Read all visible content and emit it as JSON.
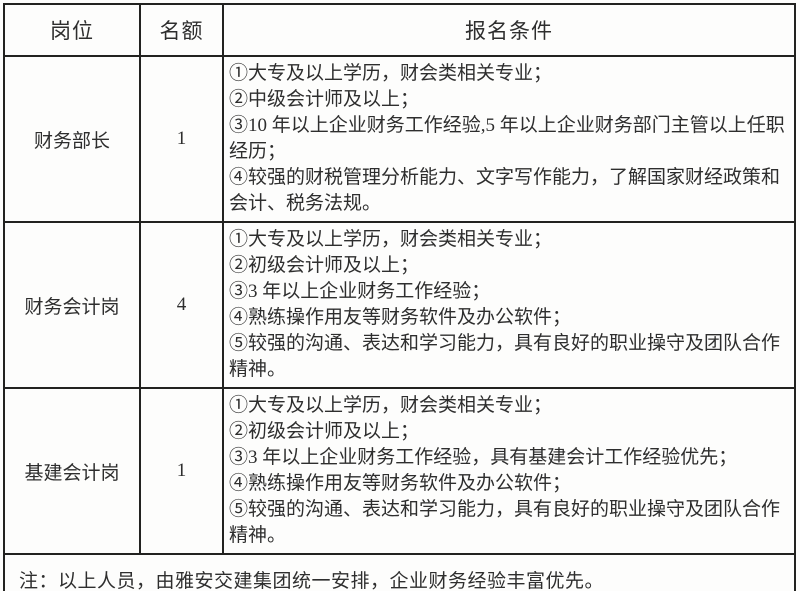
{
  "colors": {
    "border": "#222220",
    "text": "#2e2e2e",
    "background": "#fdfdfc"
  },
  "table": {
    "headers": {
      "position": "岗位",
      "quota": "名额",
      "conditions": "报名条件"
    },
    "rows": [
      {
        "position": "财务部长",
        "quota": "1",
        "conditions": [
          "①大专及以上学历，财会类相关专业；",
          "②中级会计师及以上；",
          "③10 年以上企业财务工作经验,5 年以上企业财务部门主管以上任职经历；",
          "④较强的财税管理分析能力、文字写作能力，了解国家财经政策和会计、税务法规。"
        ]
      },
      {
        "position": "财务会计岗",
        "quota": "4",
        "conditions": [
          "①大专及以上学历，财会类相关专业；",
          "②初级会计师及以上；",
          "③3 年以上企业财务工作经验；",
          "④熟练操作用友等财务软件及办公软件；",
          "⑤较强的沟通、表达和学习能力，具有良好的职业操守及团队合作精神。"
        ]
      },
      {
        "position": "基建会计岗",
        "quota": "1",
        "conditions": [
          "①大专及以上学历，财会类相关专业；",
          "②初级会计师及以上；",
          "③3 年以上企业财务工作经验，具有基建会计工作经验优先；",
          "④熟练操作用友等财务软件及办公软件；",
          "⑤较强的沟通、表达和学习能力，具有良好的职业操守及团队合作精神。"
        ]
      }
    ],
    "note": "注：以上人员，由雅安交建集团统一安排，企业财务经验丰富优先。"
  }
}
